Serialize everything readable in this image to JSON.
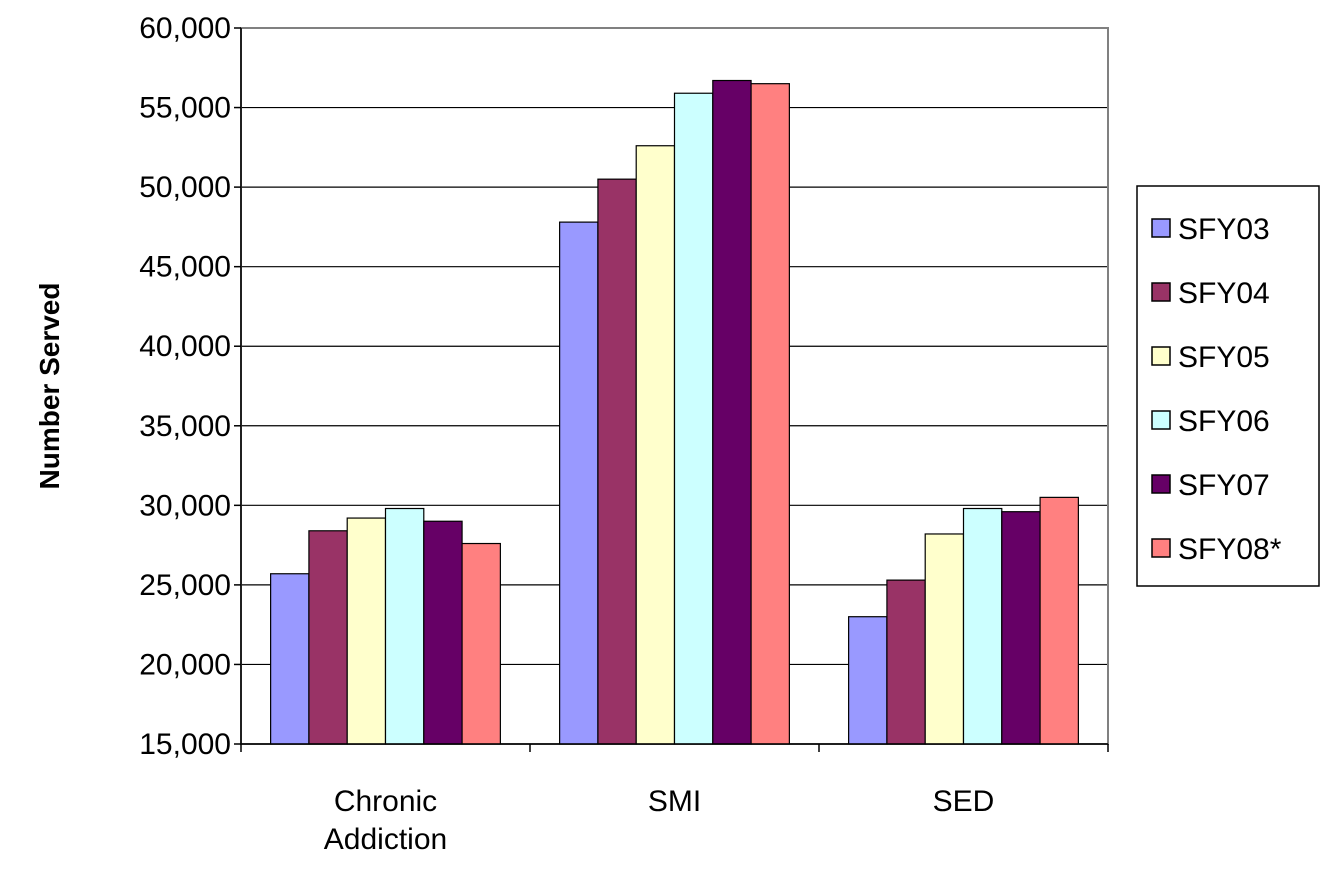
{
  "chart_data": {
    "type": "bar",
    "ylabel": "Number Served",
    "xlabel": "",
    "ylim": [
      15000,
      60000
    ],
    "ytick_step": 5000,
    "yticks": [
      "15,000",
      "20,000",
      "25,000",
      "30,000",
      "35,000",
      "40,000",
      "45,000",
      "50,000",
      "55,000",
      "60,000"
    ],
    "grid": true,
    "legend_position": "right",
    "categories": [
      [
        "Chronic",
        "Addiction"
      ],
      [
        "SMI"
      ],
      [
        "SED"
      ]
    ],
    "series": [
      {
        "name": "SFY03",
        "color": "#9999FF",
        "values": [
          25700,
          47800,
          23000
        ]
      },
      {
        "name": "SFY04",
        "color": "#993366",
        "values": [
          28400,
          50500,
          25300
        ]
      },
      {
        "name": "SFY05",
        "color": "#FFFFCC",
        "values": [
          29200,
          52600,
          28200
        ]
      },
      {
        "name": "SFY06",
        "color": "#CCFFFF",
        "values": [
          29800,
          55900,
          29800
        ]
      },
      {
        "name": "SFY07",
        "color": "#660066",
        "values": [
          29000,
          56700,
          29600
        ]
      },
      {
        "name": "SFY08*",
        "color": "#FF8080",
        "values": [
          27600,
          56500,
          30500
        ]
      }
    ]
  }
}
